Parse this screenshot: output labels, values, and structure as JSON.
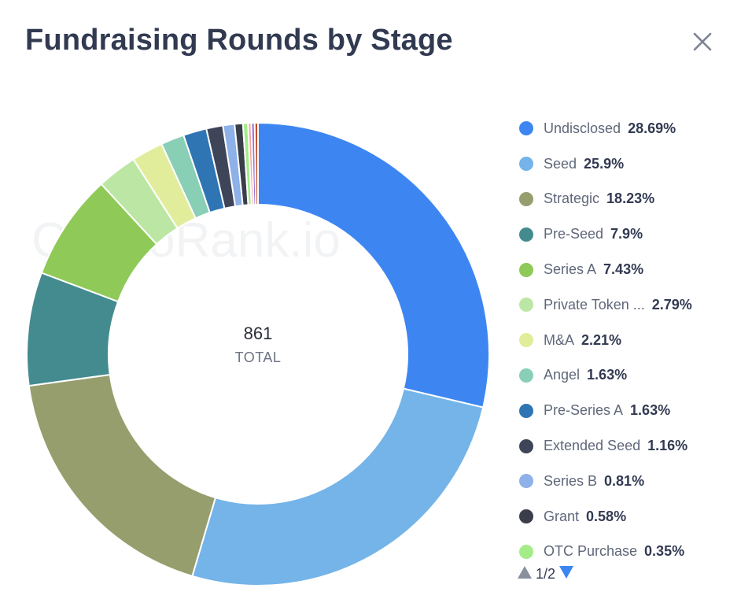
{
  "header": {
    "title": "Fundraising Rounds by Stage",
    "close_icon": "close-icon"
  },
  "watermark": "CryptoRank.io",
  "center": {
    "value": "861",
    "label": "TOTAL"
  },
  "chart_data": {
    "type": "pie",
    "title": "Fundraising Rounds by Stage",
    "donut": true,
    "total": 861,
    "legend_position": "right",
    "slices": [
      {
        "label": "Undisclosed",
        "display_label": "Undisclosed",
        "percent": 28.69,
        "percent_text": "28.69%",
        "color": "#3d86f2"
      },
      {
        "label": "Seed",
        "display_label": "Seed",
        "percent": 25.9,
        "percent_text": "25.9%",
        "color": "#74b4e8"
      },
      {
        "label": "Strategic",
        "display_label": "Strategic",
        "percent": 18.23,
        "percent_text": "18.23%",
        "color": "#979e6e"
      },
      {
        "label": "Pre-Seed",
        "display_label": "Pre-Seed",
        "percent": 7.9,
        "percent_text": "7.9%",
        "color": "#438b8e"
      },
      {
        "label": "Series A",
        "display_label": "Series A",
        "percent": 7.43,
        "percent_text": "7.43%",
        "color": "#8fc957"
      },
      {
        "label": "Private Token ...",
        "display_label": "Private Token ...",
        "percent": 2.79,
        "percent_text": "2.79%",
        "color": "#bce6a4"
      },
      {
        "label": "M&A",
        "display_label": "M&A",
        "percent": 2.21,
        "percent_text": "2.21%",
        "color": "#e2ed9c"
      },
      {
        "label": "Angel",
        "display_label": "Angel",
        "percent": 1.63,
        "percent_text": "1.63%",
        "color": "#88cfb6"
      },
      {
        "label": "Pre-Series A",
        "display_label": "Pre-Series A",
        "percent": 1.63,
        "percent_text": "1.63%",
        "color": "#2f75b4"
      },
      {
        "label": "Extended Seed",
        "display_label": "Extended Seed",
        "percent": 1.16,
        "percent_text": "1.16%",
        "color": "#3e4558"
      },
      {
        "label": "Series B",
        "display_label": "Series B",
        "percent": 0.81,
        "percent_text": "0.81%",
        "color": "#8db1e8"
      },
      {
        "label": "Grant",
        "display_label": "Grant",
        "percent": 0.58,
        "percent_text": "0.58%",
        "color": "#3a3e4a"
      },
      {
        "label": "OTC Purchase",
        "display_label": "OTC Purchase",
        "percent": 0.35,
        "percent_text": "0.35%",
        "color": "#a4ec88"
      }
    ],
    "hidden_slices_colors": [
      "#f4a7a3",
      "#9c6fd6",
      "#c1502e"
    ]
  },
  "pager": {
    "up_icon": "triangle-up-icon",
    "down_icon": "triangle-down-icon",
    "text": "1/2",
    "up_color": "#8a8f9c",
    "down_color": "#3d86f2"
  }
}
